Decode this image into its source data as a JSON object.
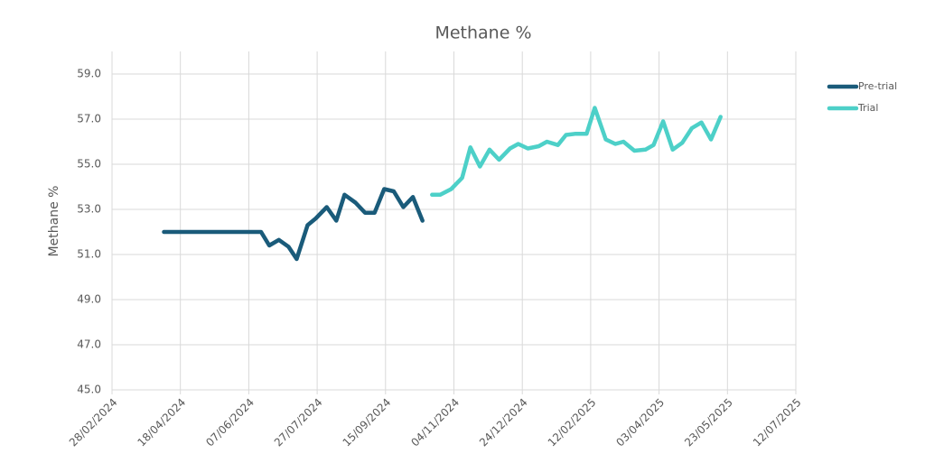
{
  "chart_data": {
    "type": "line",
    "title": "Methane %",
    "y_label": "Methane %",
    "xlim": [
      "2024-02-28",
      "2025-07-12"
    ],
    "xticks": [
      {
        "value": "2024-02-28",
        "label": "28/02/2024"
      },
      {
        "value": "2024-04-18",
        "label": "18/04/2024"
      },
      {
        "value": "2024-06-07",
        "label": "07/06/2024"
      },
      {
        "value": "2024-07-27",
        "label": "27/07/2024"
      },
      {
        "value": "2024-09-15",
        "label": "15/09/2024"
      },
      {
        "value": "2024-11-04",
        "label": "04/11/2024"
      },
      {
        "value": "2024-12-24",
        "label": "24/12/2024"
      },
      {
        "value": "2025-02-12",
        "label": "12/02/2025"
      },
      {
        "value": "2025-04-03",
        "label": "03/04/2025"
      },
      {
        "value": "2025-05-23",
        "label": "23/05/2025"
      },
      {
        "value": "2025-07-12",
        "label": "12/07/2025"
      }
    ],
    "ylim": [
      45,
      59
    ],
    "yticks": [
      {
        "value": 45,
        "label": "45.0"
      },
      {
        "value": 47,
        "label": "47.0"
      },
      {
        "value": 49,
        "label": "49.0"
      },
      {
        "value": 51,
        "label": "51.0"
      },
      {
        "value": 53,
        "label": "53.0"
      },
      {
        "value": 55,
        "label": "55.0"
      },
      {
        "value": 57,
        "label": "57.0"
      },
      {
        "value": 59,
        "label": "59.0"
      }
    ],
    "grid": true,
    "legend": "right",
    "series": [
      {
        "name": "Pre-trial",
        "color": "#1a5b7a",
        "x": [
          "2024-04-06",
          "2024-06-16",
          "2024-06-22",
          "2024-06-29",
          "2024-07-06",
          "2024-07-12",
          "2024-07-20",
          "2024-07-26",
          "2024-08-03",
          "2024-08-10",
          "2024-08-16",
          "2024-08-24",
          "2024-08-31",
          "2024-09-07",
          "2024-09-14",
          "2024-09-21",
          "2024-09-28",
          "2024-10-05",
          "2024-10-12"
        ],
        "values": [
          52.0,
          52.0,
          51.4,
          51.65,
          51.35,
          50.8,
          52.3,
          52.6,
          53.1,
          52.5,
          53.65,
          53.3,
          52.85,
          52.85,
          53.9,
          53.8,
          53.1,
          53.55,
          52.5
        ]
      },
      {
        "name": "Trial",
        "color": "#4dd0c8",
        "x": [
          "2024-10-19",
          "2024-10-25",
          "2024-11-02",
          "2024-11-10",
          "2024-11-16",
          "2024-11-23",
          "2024-11-30",
          "2024-12-07",
          "2024-12-15",
          "2024-12-21",
          "2024-12-28",
          "2025-01-05",
          "2025-01-11",
          "2025-01-19",
          "2025-01-25",
          "2025-02-01",
          "2025-02-09",
          "2025-02-15",
          "2025-02-23",
          "2025-03-02",
          "2025-03-08",
          "2025-03-16",
          "2025-03-24",
          "2025-03-30",
          "2025-04-06",
          "2025-04-13",
          "2025-04-20",
          "2025-04-27",
          "2025-05-04",
          "2025-05-11",
          "2025-05-18"
        ],
        "values": [
          53.65,
          53.65,
          53.9,
          54.4,
          55.75,
          54.9,
          55.65,
          55.2,
          55.7,
          55.9,
          55.7,
          55.8,
          56.0,
          55.85,
          56.3,
          56.35,
          56.35,
          57.5,
          56.1,
          55.9,
          56.0,
          55.6,
          55.65,
          55.85,
          56.9,
          55.65,
          55.95,
          56.6,
          56.85,
          56.1,
          57.1
        ]
      }
    ]
  }
}
